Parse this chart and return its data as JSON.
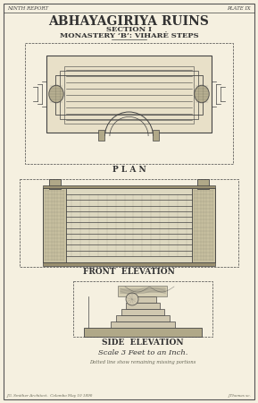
{
  "bg_color": "#f5f0e0",
  "border_color": "#555555",
  "line_color": "#444444",
  "dark_color": "#333333",
  "header_left": "NINTH REPORT",
  "header_right": "PLATE IX",
  "title1": "ABHAYAGIRIYA RUINS",
  "title2": "SECTION I",
  "title3": "MONASTERY ‘B’: VIHARÉ STEPS",
  "label_plan": "P L A N",
  "label_front": "FRONT  ELEVATION",
  "label_side": "SIDE  ELEVATION",
  "scale_text": "Scale 3 Feet to an Inch.",
  "note_text": "Dotted line show remaining missing portions",
  "footer_left": "J.G. Smither Architect.  Colombo May 10 1890",
  "footer_right": "J.Thomas sc.",
  "drawing_color": "#8a8060",
  "step_color": "#b0a888",
  "shadow_color": "#9a9070",
  "panel_color": "#c8c0a0",
  "fill_color": "#ddd8c0",
  "fill2_color": "#e8e0c8",
  "step2_color": "#d0c8b0"
}
